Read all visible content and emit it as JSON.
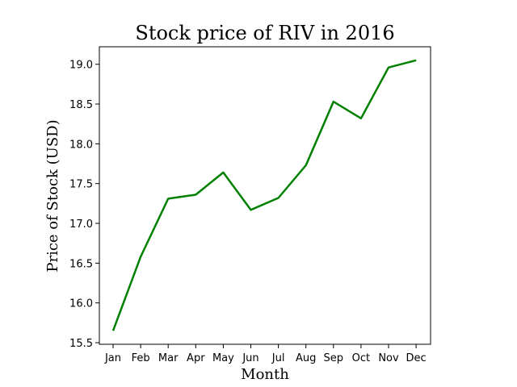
{
  "chart_data": {
    "type": "line",
    "title": "Stock price of RIV in 2016",
    "xlabel": "Month",
    "ylabel": "Price of Stock (USD)",
    "categories": [
      "Jan",
      "Feb",
      "Mar",
      "Apr",
      "May",
      "Jun",
      "Jul",
      "Aug",
      "Sep",
      "Oct",
      "Nov",
      "Dec"
    ],
    "series": [
      {
        "values": [
          15.65,
          16.58,
          17.31,
          17.36,
          17.64,
          17.17,
          17.32,
          17.73,
          18.53,
          18.32,
          18.96,
          19.05
        ],
        "color": "#008000"
      }
    ],
    "yticks": [
      "15.5",
      "16.0",
      "16.5",
      "17.0",
      "17.5",
      "18.0",
      "18.5",
      "19.0"
    ],
    "ylim": [
      15.48,
      19.22
    ],
    "grid": false,
    "legend": "none"
  }
}
